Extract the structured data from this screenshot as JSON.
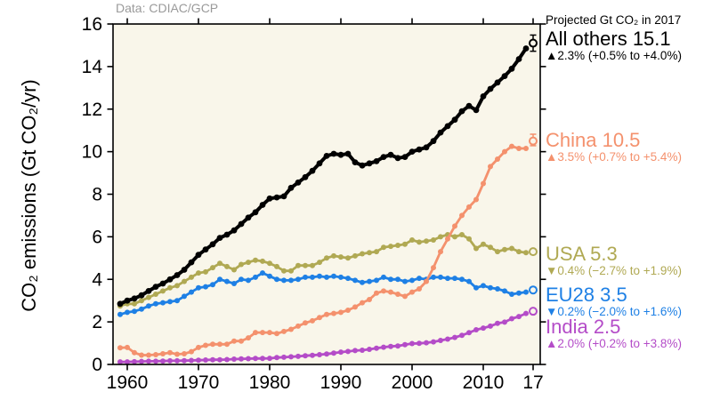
{
  "source_note": "Data: CDIAC/GCP",
  "annotations": {
    "projected_header": "Projected Gt CO₂ in 2017",
    "entries": [
      {
        "title": "All others 15.1",
        "change": "▲2.3% (+0.5% to +4.0%)",
        "color": "#000000"
      },
      {
        "title": "China 10.5",
        "change": "▲3.5% (+0.7% to +5.4%)",
        "color": "#f4916d"
      },
      {
        "title": "USA 5.3",
        "change": "▼0.4% (−2.7% to +1.9%)",
        "color": "#b0a953"
      },
      {
        "title": "EU28 3.5",
        "change": "▼0.2% (−2.0% to +1.6%)",
        "color": "#1e80e5"
      },
      {
        "title": "India 2.5",
        "change": "▲2.0% (+0.2% to +3.8%)",
        "color": "#b44cc8"
      }
    ]
  },
  "chart_data": {
    "type": "line",
    "title": "",
    "xlabel": "",
    "ylabel": "CO₂ emissions (Gt CO₂/yr)",
    "source": "Data: CDIAC/GCP",
    "plot_bg": "#f9f6ea",
    "xlim": [
      1958,
      2018
    ],
    "ylim": [
      0,
      16
    ],
    "x_ticks": [
      1960,
      1970,
      1980,
      1990,
      2000,
      2010,
      2017
    ],
    "x_tick_labels": [
      "1960",
      "1970",
      "1980",
      "1990",
      "2000",
      "2010",
      "17"
    ],
    "y_ticks": [
      0,
      2,
      4,
      6,
      8,
      10,
      12,
      14,
      16
    ],
    "years_start": 1959,
    "series": [
      {
        "name": "USA",
        "color": "#b0a953",
        "values": [
          2.75,
          2.85,
          2.85,
          3.0,
          3.15,
          3.3,
          3.45,
          3.6,
          3.7,
          3.9,
          4.1,
          4.3,
          4.35,
          4.55,
          4.75,
          4.6,
          4.45,
          4.7,
          4.8,
          4.9,
          4.85,
          4.75,
          4.6,
          4.4,
          4.4,
          4.65,
          4.65,
          4.65,
          4.8,
          5.0,
          5.1,
          5.05,
          5.0,
          5.1,
          5.2,
          5.25,
          5.3,
          5.5,
          5.55,
          5.6,
          5.65,
          5.85,
          5.75,
          5.8,
          5.85,
          6.0,
          6.1,
          6.0,
          6.1,
          5.9,
          5.45,
          5.65,
          5.5,
          5.3,
          5.4,
          5.45,
          5.3,
          5.25
        ],
        "projection": {
          "year": 2017,
          "value": 5.3
        }
      },
      {
        "name": "EU28",
        "color": "#1e80e5",
        "values": [
          2.35,
          2.45,
          2.5,
          2.6,
          2.75,
          2.85,
          2.9,
          2.95,
          3.0,
          3.2,
          3.4,
          3.6,
          3.65,
          3.75,
          4.0,
          3.9,
          3.8,
          4.0,
          3.95,
          4.1,
          4.3,
          4.15,
          4.0,
          3.95,
          3.95,
          4.0,
          4.1,
          4.1,
          4.15,
          4.1,
          4.15,
          4.1,
          4.05,
          3.95,
          3.85,
          3.9,
          3.95,
          4.1,
          4.0,
          4.0,
          3.9,
          3.95,
          4.05,
          4.0,
          4.1,
          4.1,
          4.05,
          4.05,
          4.0,
          3.9,
          3.6,
          3.7,
          3.6,
          3.55,
          3.45,
          3.3,
          3.35,
          3.4
        ],
        "projection": {
          "year": 2017,
          "value": 3.5
        }
      },
      {
        "name": "India",
        "color": "#b44cc8",
        "values": [
          0.12,
          0.12,
          0.13,
          0.14,
          0.15,
          0.15,
          0.16,
          0.17,
          0.17,
          0.18,
          0.19,
          0.2,
          0.21,
          0.22,
          0.22,
          0.23,
          0.25,
          0.26,
          0.27,
          0.28,
          0.28,
          0.29,
          0.32,
          0.34,
          0.36,
          0.38,
          0.41,
          0.43,
          0.46,
          0.49,
          0.53,
          0.58,
          0.61,
          0.65,
          0.67,
          0.71,
          0.76,
          0.81,
          0.85,
          0.87,
          0.93,
          0.98,
          0.99,
          1.02,
          1.06,
          1.13,
          1.19,
          1.27,
          1.37,
          1.49,
          1.63,
          1.71,
          1.8,
          1.93,
          1.99,
          2.15,
          2.25,
          2.4
        ],
        "projection": {
          "year": 2017,
          "value": 2.5
        }
      },
      {
        "name": "China",
        "color": "#f4916d",
        "values": [
          0.78,
          0.8,
          0.55,
          0.44,
          0.44,
          0.46,
          0.5,
          0.55,
          0.48,
          0.5,
          0.6,
          0.8,
          0.9,
          0.95,
          0.95,
          0.95,
          1.1,
          1.1,
          1.25,
          1.5,
          1.5,
          1.5,
          1.45,
          1.55,
          1.65,
          1.8,
          1.95,
          2.05,
          2.2,
          2.35,
          2.4,
          2.45,
          2.55,
          2.7,
          2.9,
          3.05,
          3.35,
          3.45,
          3.4,
          3.3,
          3.2,
          3.4,
          3.55,
          3.9,
          4.55,
          5.3,
          5.9,
          6.5,
          7.0,
          7.4,
          7.75,
          8.5,
          9.3,
          9.65,
          10.0,
          10.25,
          10.15,
          10.15
        ],
        "projection": {
          "year": 2017,
          "value": 10.5,
          "low": 10.28,
          "high": 10.82
        }
      },
      {
        "name": "All others",
        "color": "#000000",
        "values": [
          2.85,
          3.0,
          3.1,
          3.25,
          3.45,
          3.65,
          3.8,
          4.0,
          4.2,
          4.45,
          4.8,
          5.15,
          5.4,
          5.65,
          5.95,
          6.1,
          6.3,
          6.6,
          6.9,
          7.15,
          7.5,
          7.8,
          7.85,
          7.9,
          8.3,
          8.55,
          8.8,
          9.1,
          9.45,
          9.8,
          9.9,
          9.85,
          9.9,
          9.5,
          9.35,
          9.45,
          9.55,
          9.75,
          9.85,
          9.7,
          9.75,
          10.0,
          10.1,
          10.2,
          10.5,
          10.9,
          11.2,
          11.5,
          11.9,
          12.15,
          11.95,
          12.6,
          12.95,
          13.25,
          13.55,
          13.9,
          14.35,
          14.85
        ],
        "projection": {
          "year": 2017,
          "value": 15.1,
          "low": 14.72,
          "high": 15.48
        }
      }
    ]
  }
}
